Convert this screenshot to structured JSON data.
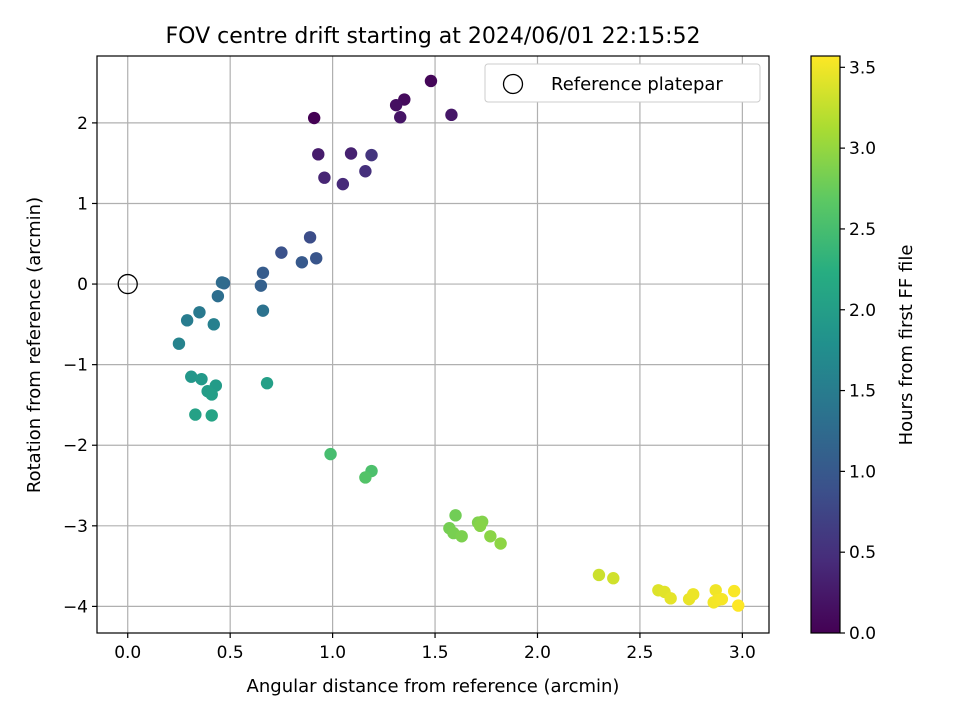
{
  "chart_data": {
    "type": "scatter",
    "title": "FOV centre drift starting at 2024/06/01 22:15:52",
    "xlabel": "Angular distance from reference (arcmin)",
    "ylabel": "Rotation from reference (arcmin)",
    "xlim": [
      -0.15,
      3.13
    ],
    "ylim": [
      -4.33,
      2.83
    ],
    "xticks": [
      0.0,
      0.5,
      1.0,
      1.5,
      2.0,
      2.5,
      3.0
    ],
    "xtick_labels": [
      "0.0",
      "0.5",
      "1.0",
      "1.5",
      "2.0",
      "2.5",
      "3.0"
    ],
    "yticks": [
      -4,
      -3,
      -2,
      -1,
      0,
      1,
      2
    ],
    "ytick_labels": [
      "−4",
      "−3",
      "−2",
      "−1",
      "0",
      "1",
      "2"
    ],
    "grid": true,
    "legend_position": "top-right",
    "legend": [
      {
        "label": "Reference platepar",
        "marker": "open-circle"
      }
    ],
    "reference_point": {
      "x": 0.0,
      "y": 0.0
    },
    "colormap": "viridis",
    "colorbar": {
      "label": "Hours from first FF file",
      "range": [
        0.0,
        3.57
      ],
      "ticks": [
        0.0,
        0.5,
        1.0,
        1.5,
        2.0,
        2.5,
        3.0,
        3.5
      ],
      "tick_labels": [
        "0.0",
        "0.5",
        "1.0",
        "1.5",
        "2.0",
        "2.5",
        "3.0",
        "3.5"
      ]
    },
    "points": [
      {
        "x": 0.91,
        "y": 2.06,
        "c": 0.0
      },
      {
        "x": 1.48,
        "y": 2.52,
        "c": 0.05
      },
      {
        "x": 1.35,
        "y": 2.29,
        "c": 0.1
      },
      {
        "x": 1.31,
        "y": 2.22,
        "c": 0.15
      },
      {
        "x": 1.33,
        "y": 2.07,
        "c": 0.2
      },
      {
        "x": 1.58,
        "y": 2.1,
        "c": 0.22
      },
      {
        "x": 0.93,
        "y": 1.61,
        "c": 0.28
      },
      {
        "x": 1.09,
        "y": 1.62,
        "c": 0.33
      },
      {
        "x": 0.96,
        "y": 1.32,
        "c": 0.38
      },
      {
        "x": 1.05,
        "y": 1.24,
        "c": 0.43
      },
      {
        "x": 1.16,
        "y": 1.4,
        "c": 0.5
      },
      {
        "x": 1.19,
        "y": 1.6,
        "c": 0.55
      },
      {
        "x": 0.89,
        "y": 0.58,
        "c": 0.85
      },
      {
        "x": 0.75,
        "y": 0.39,
        "c": 0.9
      },
      {
        "x": 0.92,
        "y": 0.32,
        "c": 0.95
      },
      {
        "x": 0.85,
        "y": 0.27,
        "c": 1.0
      },
      {
        "x": 0.66,
        "y": 0.14,
        "c": 1.05
      },
      {
        "x": 0.65,
        "y": -0.02,
        "c": 1.1
      },
      {
        "x": 0.47,
        "y": 0.01,
        "c": 1.2
      },
      {
        "x": 0.46,
        "y": 0.02,
        "c": 1.25
      },
      {
        "x": 0.44,
        "y": -0.15,
        "c": 1.3
      },
      {
        "x": 0.66,
        "y": -0.33,
        "c": 1.35
      },
      {
        "x": 0.35,
        "y": -0.35,
        "c": 1.45
      },
      {
        "x": 0.29,
        "y": -0.45,
        "c": 1.5
      },
      {
        "x": 0.42,
        "y": -0.5,
        "c": 1.55
      },
      {
        "x": 0.25,
        "y": -0.74,
        "c": 1.6
      },
      {
        "x": 0.31,
        "y": -1.15,
        "c": 1.9
      },
      {
        "x": 0.36,
        "y": -1.18,
        "c": 1.93
      },
      {
        "x": 0.43,
        "y": -1.26,
        "c": 1.96
      },
      {
        "x": 0.39,
        "y": -1.33,
        "c": 1.98
      },
      {
        "x": 0.41,
        "y": -1.37,
        "c": 2.0
      },
      {
        "x": 0.68,
        "y": -1.23,
        "c": 2.02
      },
      {
        "x": 0.33,
        "y": -1.62,
        "c": 2.05
      },
      {
        "x": 0.41,
        "y": -1.63,
        "c": 2.08
      },
      {
        "x": 0.99,
        "y": -2.11,
        "c": 2.5
      },
      {
        "x": 1.19,
        "y": -2.32,
        "c": 2.55
      },
      {
        "x": 1.16,
        "y": -2.4,
        "c": 2.6
      },
      {
        "x": 1.6,
        "y": -2.87,
        "c": 2.8
      },
      {
        "x": 1.57,
        "y": -3.03,
        "c": 2.82
      },
      {
        "x": 1.59,
        "y": -3.09,
        "c": 2.84
      },
      {
        "x": 1.63,
        "y": -3.13,
        "c": 2.86
      },
      {
        "x": 1.71,
        "y": -2.96,
        "c": 2.88
      },
      {
        "x": 1.73,
        "y": -2.95,
        "c": 2.9
      },
      {
        "x": 1.72,
        "y": -3.0,
        "c": 2.92
      },
      {
        "x": 1.77,
        "y": -3.13,
        "c": 2.94
      },
      {
        "x": 1.82,
        "y": -3.22,
        "c": 2.96
      },
      {
        "x": 2.3,
        "y": -3.61,
        "c": 3.3
      },
      {
        "x": 2.37,
        "y": -3.65,
        "c": 3.33
      },
      {
        "x": 2.59,
        "y": -3.8,
        "c": 3.4
      },
      {
        "x": 2.62,
        "y": -3.82,
        "c": 3.42
      },
      {
        "x": 2.65,
        "y": -3.9,
        "c": 3.44
      },
      {
        "x": 2.74,
        "y": -3.91,
        "c": 3.46
      },
      {
        "x": 2.76,
        "y": -3.85,
        "c": 3.48
      },
      {
        "x": 2.87,
        "y": -3.8,
        "c": 3.5
      },
      {
        "x": 2.86,
        "y": -3.95,
        "c": 3.51
      },
      {
        "x": 2.88,
        "y": -3.92,
        "c": 3.52
      },
      {
        "x": 2.9,
        "y": -3.91,
        "c": 3.53
      },
      {
        "x": 2.96,
        "y": -3.81,
        "c": 3.55
      },
      {
        "x": 2.98,
        "y": -3.99,
        "c": 3.57
      }
    ]
  }
}
